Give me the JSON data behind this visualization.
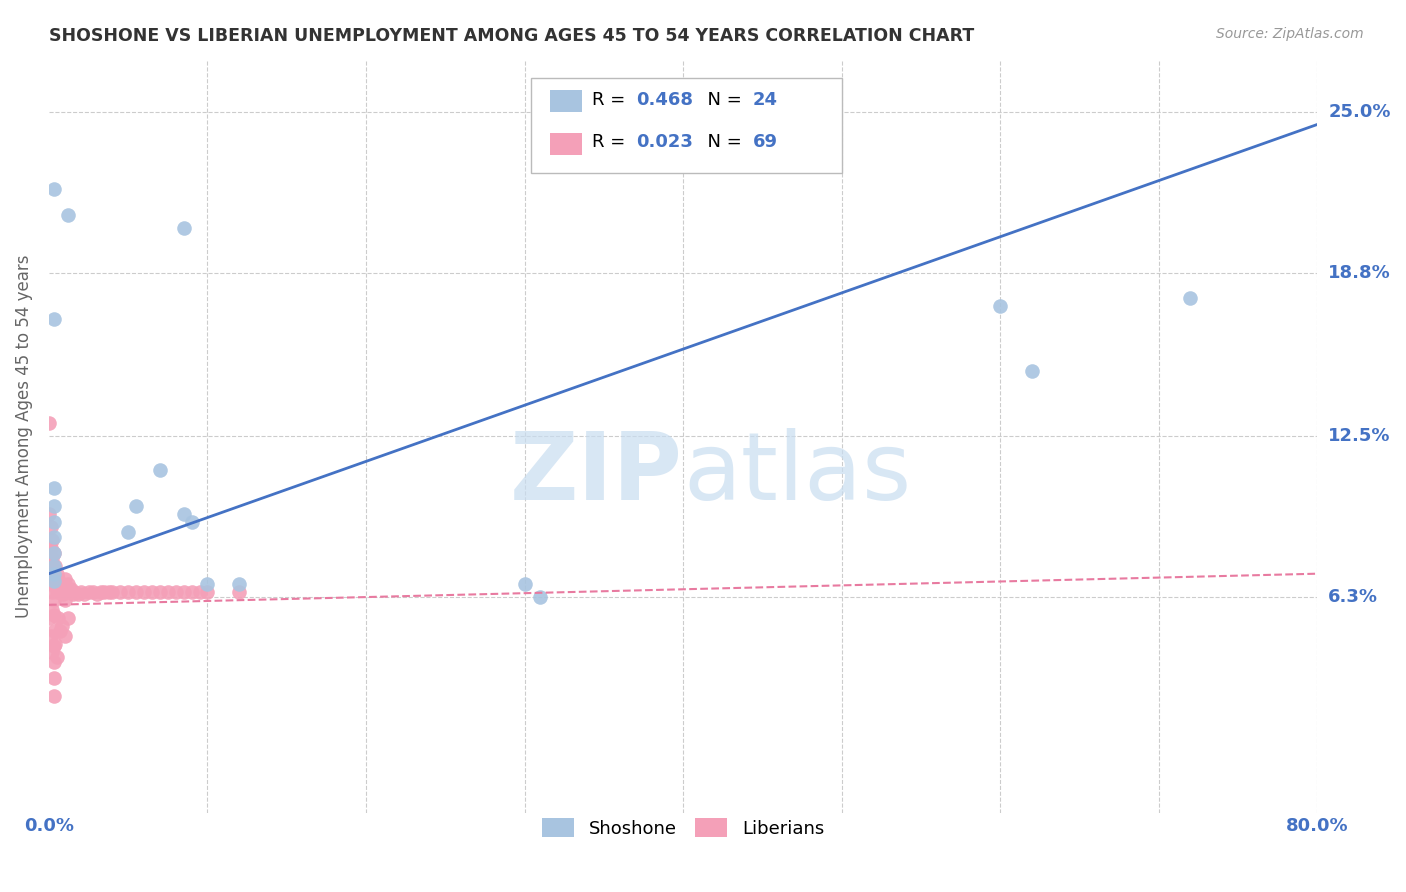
{
  "title": "SHOSHONE VS LIBERIAN UNEMPLOYMENT AMONG AGES 45 TO 54 YEARS CORRELATION CHART",
  "source": "Source: ZipAtlas.com",
  "ylabel": "Unemployment Among Ages 45 to 54 years",
  "xlim": [
    0.0,
    0.8
  ],
  "ylim": [
    -0.02,
    0.27
  ],
  "ytick_positions": [
    0.0,
    0.063,
    0.125,
    0.188,
    0.25
  ],
  "ytick_labels": [
    "",
    "6.3%",
    "12.5%",
    "18.8%",
    "25.0%"
  ],
  "xtick_positions": [
    0.0,
    0.1,
    0.2,
    0.3,
    0.4,
    0.5,
    0.6,
    0.7,
    0.8
  ],
  "xtick_labels": [
    "0.0%",
    "",
    "",
    "",
    "",
    "",
    "",
    "",
    "80.0%"
  ],
  "shoshone_color": "#a8c4e0",
  "liberian_color": "#f4a0b8",
  "shoshone_R": "0.468",
  "shoshone_N": "24",
  "liberian_R": "0.023",
  "liberian_N": "69",
  "shoshone_line_color": "#4472c4",
  "liberian_line_color": "#e87aa0",
  "legend_blue": "#4472c4",
  "watermark_color": "#c8ddf0",
  "grid_color": "#cccccc",
  "background_color": "#ffffff",
  "shoshone_scatter_x": [
    0.003,
    0.012,
    0.085,
    0.003,
    0.003,
    0.003,
    0.003,
    0.003,
    0.003,
    0.003,
    0.003,
    0.003,
    0.05,
    0.055,
    0.07,
    0.085,
    0.09,
    0.1,
    0.12,
    0.3,
    0.31,
    0.6,
    0.62,
    0.72
  ],
  "shoshone_scatter_y": [
    0.22,
    0.21,
    0.205,
    0.17,
    0.105,
    0.098,
    0.092,
    0.086,
    0.08,
    0.075,
    0.072,
    0.069,
    0.088,
    0.098,
    0.112,
    0.095,
    0.092,
    0.068,
    0.068,
    0.068,
    0.063,
    0.175,
    0.15,
    0.178
  ],
  "liberian_scatter_x": [
    0.0,
    0.0,
    0.0,
    0.0,
    0.001,
    0.001,
    0.001,
    0.001,
    0.001,
    0.002,
    0.002,
    0.002,
    0.002,
    0.002,
    0.002,
    0.003,
    0.003,
    0.003,
    0.003,
    0.003,
    0.003,
    0.003,
    0.003,
    0.003,
    0.003,
    0.004,
    0.004,
    0.004,
    0.005,
    0.005,
    0.005,
    0.006,
    0.006,
    0.007,
    0.007,
    0.008,
    0.008,
    0.009,
    0.01,
    0.01,
    0.01,
    0.012,
    0.012,
    0.014,
    0.015,
    0.016,
    0.018,
    0.02,
    0.022,
    0.025,
    0.028,
    0.03,
    0.033,
    0.035,
    0.038,
    0.04,
    0.045,
    0.05,
    0.055,
    0.06,
    0.065,
    0.07,
    0.075,
    0.08,
    0.085,
    0.09,
    0.095,
    0.1,
    0.12
  ],
  "liberian_scatter_y": [
    0.13,
    0.095,
    0.08,
    0.055,
    0.09,
    0.082,
    0.075,
    0.068,
    0.048,
    0.085,
    0.078,
    0.072,
    0.065,
    0.058,
    0.042,
    0.08,
    0.074,
    0.068,
    0.062,
    0.056,
    0.05,
    0.044,
    0.038,
    0.032,
    0.025,
    0.075,
    0.068,
    0.045,
    0.072,
    0.065,
    0.04,
    0.07,
    0.055,
    0.068,
    0.05,
    0.066,
    0.052,
    0.064,
    0.07,
    0.062,
    0.048,
    0.068,
    0.055,
    0.066,
    0.064,
    0.065,
    0.064,
    0.065,
    0.064,
    0.065,
    0.065,
    0.064,
    0.065,
    0.065,
    0.065,
    0.065,
    0.065,
    0.065,
    0.065,
    0.065,
    0.065,
    0.065,
    0.065,
    0.065,
    0.065,
    0.065,
    0.065,
    0.065,
    0.065
  ],
  "shoshone_line_x": [
    0.0,
    0.8
  ],
  "shoshone_line_y": [
    0.072,
    0.245
  ],
  "liberian_line_x": [
    0.0,
    0.8
  ],
  "liberian_line_y": [
    0.06,
    0.072
  ]
}
